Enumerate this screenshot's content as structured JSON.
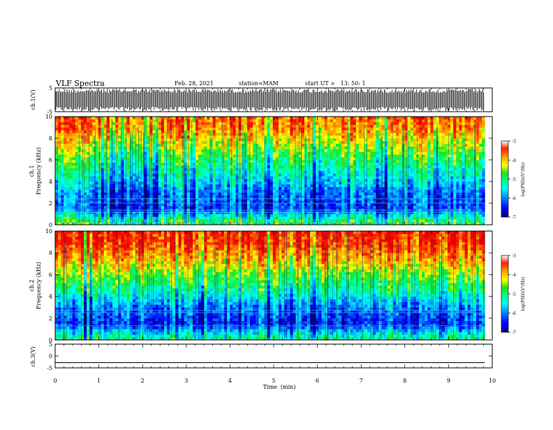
{
  "header": {
    "title": "VLF Spectra",
    "date": "Feb. 28, 2021",
    "station": "station=MAM",
    "start": "start UT =   13: 50: 1"
  },
  "colors": {
    "spectrogram_scale": [
      "#00007a",
      "#0000ff",
      "#00a0ff",
      "#00ffff",
      "#00ff80",
      "#20e020",
      "#ffff00",
      "#ff9900",
      "#ff2000",
      "#e00000"
    ],
    "axis": "#000000"
  },
  "chart_data": [
    {
      "type": "line",
      "name": "ch1-waveform",
      "ylabel": "ch.1(V)",
      "ylim": [
        -5,
        5
      ],
      "yticks": [
        "5",
        "-5"
      ],
      "xlim": [
        0,
        10
      ],
      "x_end": 9.83,
      "description_of_content": "dense vertical amplitude spikes filling the full range"
    },
    {
      "type": "heatmap",
      "name": "ch1-spectrogram",
      "ylabel_line1": "ch.1",
      "ylabel_line2": "Frequency (kHz)",
      "ylim": [
        0,
        10
      ],
      "yticks": [
        "0",
        "2",
        "4",
        "6",
        "8",
        "10"
      ],
      "xlim": [
        0,
        10
      ],
      "x_end": 9.83,
      "colorbar": {
        "label": "log(PSD)(V²/Hz)",
        "ticks": [
          "-3",
          "-4",
          "-5",
          "-6",
          "-7"
        ],
        "range": [
          -7,
          -3
        ]
      },
      "level_profile": [
        {
          "freq": 0.3,
          "log_psd": -4.8
        },
        {
          "freq": 1.5,
          "log_psd": -6.2
        },
        {
          "freq": 3.0,
          "log_psd": -6.0
        },
        {
          "freq": 4.5,
          "log_psd": -5.4
        },
        {
          "freq": 6.0,
          "log_psd": -4.9
        },
        {
          "freq": 7.5,
          "log_psd": -4.3
        },
        {
          "freq": 9.0,
          "log_psd": -3.7
        },
        {
          "freq": 10.0,
          "log_psd": -3.6
        }
      ],
      "horizontal_lines_khz": [
        0.25,
        0.5,
        1.15,
        1.35,
        2.0,
        2.4
      ]
    },
    {
      "type": "heatmap",
      "name": "ch2-spectrogram",
      "ylabel_line1": "ch.2",
      "ylabel_line2": "Frequency (kHz)",
      "ylim": [
        0,
        10
      ],
      "yticks": [
        "0",
        "2",
        "4",
        "6",
        "8",
        "10"
      ],
      "xlim": [
        0,
        10
      ],
      "x_end": 9.83,
      "colorbar": {
        "label": "log(PSD)(V²/Hz)",
        "ticks": [
          "-3",
          "-4",
          "-5",
          "-6",
          "-7"
        ],
        "range": [
          -7,
          -3
        ]
      },
      "level_profile": [
        {
          "freq": 0.3,
          "log_psd": -5.2
        },
        {
          "freq": 1.5,
          "log_psd": -6.4
        },
        {
          "freq": 3.0,
          "log_psd": -6.0
        },
        {
          "freq": 4.5,
          "log_psd": -5.2
        },
        {
          "freq": 6.0,
          "log_psd": -4.6
        },
        {
          "freq": 7.5,
          "log_psd": -3.9
        },
        {
          "freq": 9.0,
          "log_psd": -3.4
        },
        {
          "freq": 10.0,
          "log_psd": -3.3
        }
      ],
      "horizontal_lines_khz": [
        1.3,
        2.5,
        2.7
      ]
    },
    {
      "type": "line",
      "name": "ch3-waveform",
      "ylabel": "ch.3(V)",
      "ylim": [
        -5,
        5
      ],
      "yticks": [
        "5",
        "0",
        "-5"
      ],
      "xlim": [
        0,
        10
      ],
      "x_end": 9.83,
      "y_value": -2.8
    }
  ],
  "xaxis": {
    "label": "Time  (min)",
    "ticks": [
      "0",
      "1",
      "2",
      "3",
      "4",
      "5",
      "6",
      "7",
      "8",
      "9",
      "10"
    ],
    "range": [
      0,
      10
    ]
  }
}
